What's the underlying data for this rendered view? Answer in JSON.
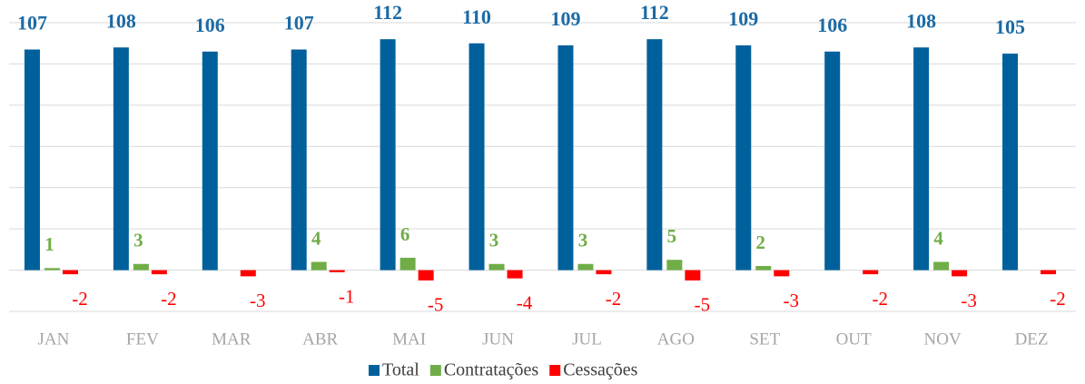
{
  "chart_data": {
    "type": "bar",
    "categories": [
      "JAN",
      "FEV",
      "MAR",
      "ABR",
      "MAI",
      "JUN",
      "JUL",
      "AGO",
      "SET",
      "OUT",
      "NOV",
      "DEZ"
    ],
    "series": [
      {
        "name": "Total",
        "color": "#00609c",
        "values": [
          107,
          108,
          106,
          107,
          112,
          110,
          109,
          112,
          109,
          106,
          108,
          105
        ]
      },
      {
        "name": "Contratações",
        "color": "#70ad47",
        "values": [
          1,
          3,
          null,
          4,
          6,
          3,
          3,
          5,
          2,
          null,
          4,
          null
        ]
      },
      {
        "name": "Cessações",
        "color": "#ff0000",
        "values": [
          -2,
          -2,
          -3,
          -1,
          -5,
          -4,
          -2,
          -5,
          -3,
          -2,
          -3,
          -2
        ]
      }
    ],
    "ylim": [
      -20,
      120
    ],
    "yticks": [
      -20,
      0,
      20,
      40,
      60,
      80,
      100,
      120
    ],
    "grid": true,
    "legend": "bottom"
  }
}
